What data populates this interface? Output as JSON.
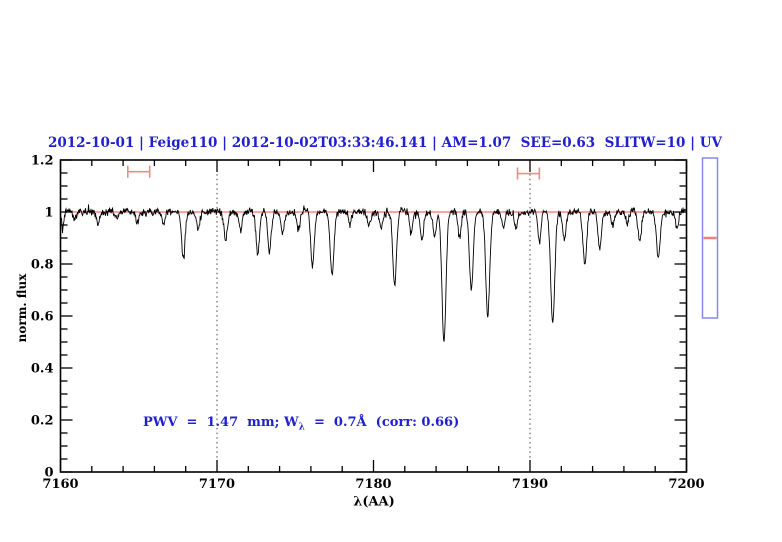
{
  "title": {
    "text": "2012-10-01 | Feige110 | 2012-10-02T03:33:46.141 | AM=1.07  SEE=0.63  SLITW=10 | UV",
    "color": "#2020cf"
  },
  "annotation": {
    "prefix": "PWV  =  1.47  mm; W",
    "sub": "λ",
    "suffix": "  =  0.7Å  (corr: 0.66)",
    "color": "#2020cf"
  },
  "axes": {
    "xlabel": "λ(AA)",
    "ylabel": "norm. flux"
  },
  "chart_data": {
    "type": "line",
    "title": "2012-10-01 | Feige110 | 2012-10-02T03:33:46.141 | AM=1.07  SEE=0.63  SLITW=10 | UV",
    "xlabel": "λ(AA)",
    "ylabel": "norm. flux",
    "xlim": [
      7160,
      7200
    ],
    "ylim": [
      0,
      1.2
    ],
    "x_major_ticks": [
      7160,
      7170,
      7180,
      7190,
      7200
    ],
    "x_tick_labels": [
      "7160",
      "7170",
      "7180",
      "7190",
      "7200"
    ],
    "x_minor_step": 2,
    "y_major_ticks": [
      0,
      0.2,
      0.4,
      0.6,
      0.8,
      1,
      1.2
    ],
    "y_tick_labels": [
      "0",
      "0.2",
      "0.4",
      "0.6",
      "0.8",
      "1",
      "1.2"
    ],
    "y_minor_step": 0.05,
    "grid": false,
    "dotted_vlines": [
      7170,
      7190
    ],
    "continuum_level": 1.0,
    "continuum_color": "#ff4444",
    "line_color": "#000000",
    "noise_amplitude": 0.017,
    "sample_step": 0.032,
    "noise_seed": 7,
    "absorption_lines": [
      {
        "center": 7160.15,
        "depth": 0.055,
        "sigma": 0.08
      },
      {
        "center": 7160.9,
        "depth": 0.035,
        "sigma": 0.1
      },
      {
        "center": 7162.4,
        "depth": 0.045,
        "sigma": 0.1
      },
      {
        "center": 7163.6,
        "depth": 0.03,
        "sigma": 0.1
      },
      {
        "center": 7164.9,
        "depth": 0.035,
        "sigma": 0.1
      },
      {
        "center": 7166.6,
        "depth": 0.05,
        "sigma": 0.1
      },
      {
        "center": 7167.85,
        "depth": 0.175,
        "sigma": 0.11
      },
      {
        "center": 7168.8,
        "depth": 0.065,
        "sigma": 0.1
      },
      {
        "center": 7170.55,
        "depth": 0.11,
        "sigma": 0.11
      },
      {
        "center": 7171.5,
        "depth": 0.07,
        "sigma": 0.1
      },
      {
        "center": 7172.6,
        "depth": 0.165,
        "sigma": 0.11
      },
      {
        "center": 7173.35,
        "depth": 0.155,
        "sigma": 0.11
      },
      {
        "center": 7174.2,
        "depth": 0.08,
        "sigma": 0.1
      },
      {
        "center": 7175.2,
        "depth": 0.07,
        "sigma": 0.1
      },
      {
        "center": 7176.1,
        "depth": 0.21,
        "sigma": 0.11
      },
      {
        "center": 7177.35,
        "depth": 0.23,
        "sigma": 0.12
      },
      {
        "center": 7178.5,
        "depth": 0.05,
        "sigma": 0.1
      },
      {
        "center": 7179.7,
        "depth": 0.05,
        "sigma": 0.1
      },
      {
        "center": 7180.5,
        "depth": 0.06,
        "sigma": 0.1
      },
      {
        "center": 7181.35,
        "depth": 0.29,
        "sigma": 0.12
      },
      {
        "center": 7182.4,
        "depth": 0.08,
        "sigma": 0.1
      },
      {
        "center": 7183.1,
        "depth": 0.1,
        "sigma": 0.1
      },
      {
        "center": 7183.9,
        "depth": 0.1,
        "sigma": 0.1
      },
      {
        "center": 7184.5,
        "depth": 0.5,
        "sigma": 0.13
      },
      {
        "center": 7185.5,
        "depth": 0.1,
        "sigma": 0.1
      },
      {
        "center": 7186.25,
        "depth": 0.29,
        "sigma": 0.12
      },
      {
        "center": 7187.3,
        "depth": 0.4,
        "sigma": 0.13
      },
      {
        "center": 7188.3,
        "depth": 0.06,
        "sigma": 0.1
      },
      {
        "center": 7189.1,
        "depth": 0.05,
        "sigma": 0.1
      },
      {
        "center": 7190.6,
        "depth": 0.12,
        "sigma": 0.1
      },
      {
        "center": 7191.45,
        "depth": 0.43,
        "sigma": 0.13
      },
      {
        "center": 7192.2,
        "depth": 0.1,
        "sigma": 0.1
      },
      {
        "center": 7193.5,
        "depth": 0.2,
        "sigma": 0.12
      },
      {
        "center": 7194.45,
        "depth": 0.14,
        "sigma": 0.11
      },
      {
        "center": 7195.3,
        "depth": 0.05,
        "sigma": 0.1
      },
      {
        "center": 7196.2,
        "depth": 0.05,
        "sigma": 0.1
      },
      {
        "center": 7197.0,
        "depth": 0.11,
        "sigma": 0.11
      },
      {
        "center": 7198.2,
        "depth": 0.17,
        "sigma": 0.12
      },
      {
        "center": 7199.4,
        "depth": 0.07,
        "sigma": 0.1
      }
    ],
    "interval_markers": {
      "color": "#f08a8a",
      "items": [
        {
          "x_center": 7165.0,
          "half_width": 0.7,
          "y": 1.155
        },
        {
          "x_center": 7189.9,
          "half_width": 0.7,
          "y": 1.148
        }
      ]
    },
    "side_gauge": {
      "border_color": "#8888f0",
      "marker_color": "#f08080",
      "marker_fraction": 0.5
    }
  }
}
